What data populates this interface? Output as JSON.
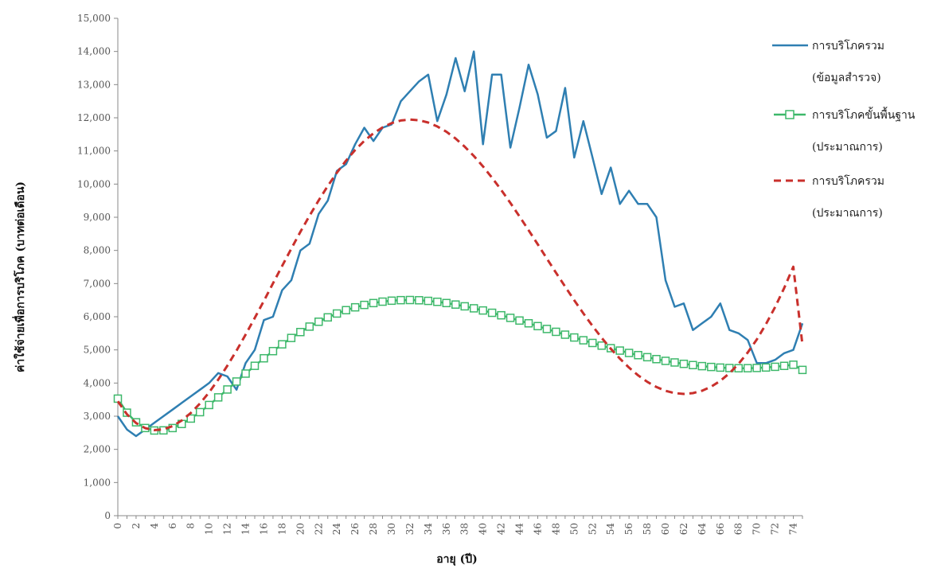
{
  "chart_data": {
    "type": "line",
    "title": "",
    "xlabel": "อายุ (ปี)",
    "ylabel": "ค่าใช้จ่ายเพื่อการบริโภค (บาทต่อเดือน)",
    "xlim": [
      0,
      75
    ],
    "ylim": [
      0,
      15000
    ],
    "ytick_step": 1000,
    "xtick_labels_every": 2,
    "legend_position": "right",
    "grid": false,
    "series": [
      {
        "name": "การบริโภครวม (ข้อมูลสำรวจ)",
        "color": "#2f7fb2",
        "style": "solid",
        "x": [
          0,
          1,
          2,
          3,
          4,
          5,
          6,
          7,
          8,
          9,
          10,
          11,
          12,
          13,
          14,
          15,
          16,
          17,
          18,
          19,
          20,
          21,
          22,
          23,
          24,
          25,
          26,
          27,
          28,
          29,
          30,
          31,
          32,
          33,
          34,
          35,
          36,
          37,
          38,
          39,
          40,
          41,
          42,
          43,
          44,
          45,
          46,
          47,
          48,
          49,
          50,
          51,
          52,
          53,
          54,
          55,
          56,
          57,
          58,
          59,
          60,
          61,
          62,
          63,
          64,
          65,
          66,
          67,
          68,
          69,
          70,
          71,
          72,
          73,
          74,
          75
        ],
        "y": [
          3000,
          2600,
          2400,
          2600,
          2800,
          3000,
          3200,
          3400,
          3600,
          3800,
          4000,
          4300,
          4200,
          3800,
          4600,
          5000,
          5900,
          6000,
          6800,
          7100,
          8000,
          8200,
          9100,
          9500,
          10400,
          10600,
          11200,
          11700,
          11300,
          11700,
          11800,
          12500,
          12800,
          13100,
          13300,
          11900,
          12700,
          13800,
          12800,
          14000,
          11200,
          13300,
          13300,
          11100,
          12300,
          13600,
          12700,
          11400,
          11600,
          12900,
          10800,
          11900,
          10800,
          9700,
          10500,
          9400,
          9800,
          9400,
          9400,
          9000,
          7100,
          6300,
          6400,
          5600,
          5800,
          6000,
          6400,
          5600,
          5500,
          5300,
          4600,
          4600,
          4700,
          4900,
          5000,
          5800
        ]
      },
      {
        "name": "การบริโภคขั้นพื้นฐาน (ประมาณการ)",
        "color": "#3db86a",
        "style": "markers-square",
        "x": [
          0,
          1,
          2,
          3,
          4,
          5,
          6,
          7,
          8,
          9,
          10,
          11,
          12,
          13,
          14,
          15,
          16,
          17,
          18,
          19,
          20,
          21,
          22,
          23,
          24,
          25,
          26,
          27,
          28,
          29,
          30,
          31,
          32,
          33,
          34,
          35,
          36,
          37,
          38,
          39,
          40,
          41,
          42,
          43,
          44,
          45,
          46,
          47,
          48,
          49,
          50,
          51,
          52,
          53,
          54,
          55,
          56,
          57,
          58,
          59,
          60,
          61,
          62,
          63,
          64,
          65,
          66,
          67,
          68,
          69,
          70,
          71,
          72,
          73,
          74,
          75
        ],
        "y": [
          3530,
          3106,
          2817,
          2644,
          2569,
          2573,
          2643,
          2766,
          2929,
          3122,
          3338,
          3568,
          3806,
          4046,
          4285,
          4520,
          4747,
          4963,
          5168,
          5360,
          5538,
          5702,
          5849,
          5981,
          6097,
          6198,
          6284,
          6356,
          6412,
          6455,
          6484,
          6500,
          6504,
          6497,
          6478,
          6450,
          6413,
          6367,
          6314,
          6254,
          6189,
          6119,
          6044,
          5966,
          5885,
          5802,
          5717,
          5631,
          5545,
          5459,
          5374,
          5290,
          5209,
          5129,
          5052,
          4979,
          4908,
          4842,
          4780,
          4722,
          4669,
          4621,
          4579,
          4542,
          4510,
          4485,
          4466,
          4453,
          4447,
          4448,
          4455,
          4469,
          4490,
          4518,
          4553,
          4396
        ]
      },
      {
        "name": "การบริโภครวม (ประมาณการ)",
        "color": "#c9302c",
        "style": "dashed",
        "x": [
          0,
          1,
          2,
          3,
          4,
          5,
          6,
          7,
          8,
          9,
          10,
          11,
          12,
          13,
          14,
          15,
          16,
          17,
          18,
          19,
          20,
          21,
          22,
          23,
          24,
          25,
          26,
          27,
          28,
          29,
          30,
          31,
          32,
          33,
          34,
          35,
          36,
          37,
          38,
          39,
          40,
          41,
          42,
          43,
          44,
          45,
          46,
          47,
          48,
          49,
          50,
          51,
          52,
          53,
          54,
          55,
          56,
          57,
          58,
          59,
          60,
          61,
          62,
          63,
          64,
          65,
          66,
          67,
          68,
          69,
          70,
          71,
          72,
          73,
          74,
          75
        ],
        "y": [
          3450,
          3057,
          2794,
          2640,
          2580,
          2604,
          2703,
          2870,
          3099,
          3384,
          3720,
          4102,
          4523,
          4978,
          5460,
          5963,
          6481,
          7006,
          7532,
          8051,
          8558,
          9046,
          9510,
          9944,
          10345,
          10708,
          11028,
          11303,
          11531,
          11710,
          11839,
          11918,
          11947,
          11926,
          11856,
          11739,
          11577,
          11373,
          11129,
          10848,
          10534,
          10191,
          9822,
          9432,
          9026,
          8608,
          8183,
          7755,
          7328,
          6907,
          6496,
          6100,
          5722,
          5366,
          5036,
          4735,
          4466,
          4232,
          4036,
          3880,
          3766,
          3696,
          3672,
          3695,
          3768,
          3891,
          4066,
          4295,
          4579,
          4919,
          5317,
          5774,
          6291,
          6869,
          7508,
          5150
        ]
      }
    ]
  },
  "legend": [
    {
      "line1": "การบริโภครวม",
      "line2": "(ข้อมูลสำรวจ)"
    },
    {
      "line1": "การบริโภคขั้นพื้นฐาน",
      "line2": "(ประมาณการ)"
    },
    {
      "line1": "การบริโภครวม",
      "line2": "(ประมาณการ)"
    }
  ]
}
